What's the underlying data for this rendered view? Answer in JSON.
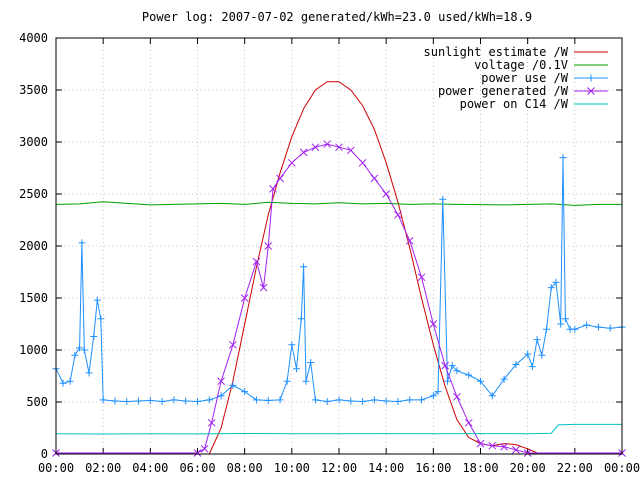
{
  "chart_data": {
    "type": "line",
    "title": "Power log: 2007-07-02 generated/kWh=23.0 used/kWh=18.9",
    "xlabel": "",
    "ylabel": "",
    "xlim": [
      0,
      24
    ],
    "ylim": [
      0,
      4000
    ],
    "grid": true,
    "legend_position": "top-right",
    "x_ticks": [
      "00:00",
      "02:00",
      "04:00",
      "06:00",
      "08:00",
      "10:00",
      "12:00",
      "14:00",
      "16:00",
      "18:00",
      "20:00",
      "22:00",
      "00:00"
    ],
    "y_ticks": [
      0,
      500,
      1000,
      1500,
      2000,
      2500,
      3000,
      3500,
      4000
    ],
    "series": [
      {
        "name": "sunlight estimate /W",
        "color": "#cc0000",
        "marker": "none",
        "points": [
          [
            6.5,
            0
          ],
          [
            7,
            250
          ],
          [
            7.5,
            700
          ],
          [
            8,
            1250
          ],
          [
            8.5,
            1800
          ],
          [
            9,
            2300
          ],
          [
            9.5,
            2700
          ],
          [
            10,
            3050
          ],
          [
            10.5,
            3320
          ],
          [
            11,
            3500
          ],
          [
            11.5,
            3580
          ],
          [
            12,
            3580
          ],
          [
            12.5,
            3500
          ],
          [
            13,
            3350
          ],
          [
            13.5,
            3120
          ],
          [
            14,
            2800
          ],
          [
            14.5,
            2420
          ],
          [
            15,
            1980
          ],
          [
            15.5,
            1500
          ],
          [
            16,
            1050
          ],
          [
            16.5,
            650
          ],
          [
            17,
            330
          ],
          [
            17.5,
            160
          ],
          [
            18,
            100
          ],
          [
            18.5,
            80
          ],
          [
            19,
            100
          ],
          [
            19.5,
            90
          ],
          [
            20,
            50
          ],
          [
            20.5,
            0
          ]
        ]
      },
      {
        "name": "voltage /0.1V",
        "color": "#00a000",
        "marker": "none",
        "points": [
          [
            0,
            2400
          ],
          [
            1,
            2405
          ],
          [
            2,
            2425
          ],
          [
            3,
            2410
          ],
          [
            4,
            2395
          ],
          [
            5,
            2400
          ],
          [
            6,
            2405
          ],
          [
            7,
            2410
          ],
          [
            8,
            2400
          ],
          [
            9,
            2420
          ],
          [
            10,
            2410
          ],
          [
            11,
            2405
          ],
          [
            12,
            2415
          ],
          [
            13,
            2405
          ],
          [
            14,
            2410
          ],
          [
            15,
            2400
          ],
          [
            16,
            2405
          ],
          [
            17,
            2400
          ],
          [
            18,
            2398
          ],
          [
            19,
            2395
          ],
          [
            20,
            2400
          ],
          [
            21,
            2405
          ],
          [
            22,
            2390
          ],
          [
            23,
            2400
          ],
          [
            24,
            2400
          ]
        ]
      },
      {
        "name": "power use /W",
        "color": "#1e90ff",
        "marker": "plus",
        "points": [
          [
            0,
            820
          ],
          [
            0.3,
            680
          ],
          [
            0.6,
            700
          ],
          [
            0.8,
            950
          ],
          [
            1,
            1020
          ],
          [
            1.1,
            2030
          ],
          [
            1.2,
            1000
          ],
          [
            1.4,
            780
          ],
          [
            1.6,
            1130
          ],
          [
            1.75,
            1480
          ],
          [
            1.9,
            1300
          ],
          [
            2,
            520
          ],
          [
            2.5,
            510
          ],
          [
            3,
            505
          ],
          [
            3.5,
            510
          ],
          [
            4,
            515
          ],
          [
            4.5,
            505
          ],
          [
            5,
            520
          ],
          [
            5.5,
            510
          ],
          [
            6,
            505
          ],
          [
            6.5,
            520
          ],
          [
            7,
            560
          ],
          [
            7.5,
            660
          ],
          [
            8,
            600
          ],
          [
            8.5,
            520
          ],
          [
            9,
            515
          ],
          [
            9.5,
            520
          ],
          [
            9.8,
            700
          ],
          [
            10,
            1050
          ],
          [
            10.2,
            820
          ],
          [
            10.4,
            1300
          ],
          [
            10.5,
            1800
          ],
          [
            10.6,
            700
          ],
          [
            10.8,
            880
          ],
          [
            11,
            520
          ],
          [
            11.5,
            505
          ],
          [
            12,
            520
          ],
          [
            12.5,
            510
          ],
          [
            13,
            505
          ],
          [
            13.5,
            520
          ],
          [
            14,
            510
          ],
          [
            14.5,
            505
          ],
          [
            15,
            520
          ],
          [
            15.5,
            520
          ],
          [
            16,
            560
          ],
          [
            16.2,
            600
          ],
          [
            16.4,
            2450
          ],
          [
            16.6,
            700
          ],
          [
            16.8,
            850
          ],
          [
            17,
            800
          ],
          [
            17.5,
            760
          ],
          [
            18,
            700
          ],
          [
            18.5,
            560
          ],
          [
            19,
            720
          ],
          [
            19.5,
            860
          ],
          [
            20,
            960
          ],
          [
            20.2,
            840
          ],
          [
            20.4,
            1100
          ],
          [
            20.6,
            950
          ],
          [
            20.8,
            1200
          ],
          [
            21,
            1600
          ],
          [
            21.2,
            1650
          ],
          [
            21.4,
            1250
          ],
          [
            21.5,
            2850
          ],
          [
            21.6,
            1300
          ],
          [
            21.8,
            1200
          ],
          [
            22,
            1200
          ],
          [
            22.5,
            1240
          ],
          [
            23,
            1220
          ],
          [
            23.5,
            1210
          ],
          [
            24,
            1220
          ]
        ]
      },
      {
        "name": "power generated /W",
        "color": "#a020f0",
        "marker": "cross",
        "points": [
          [
            0,
            10
          ],
          [
            6,
            10
          ],
          [
            6.3,
            50
          ],
          [
            6.6,
            300
          ],
          [
            7,
            700
          ],
          [
            7.5,
            1050
          ],
          [
            8,
            1500
          ],
          [
            8.5,
            1850
          ],
          [
            8.8,
            1600
          ],
          [
            9,
            2000
          ],
          [
            9.2,
            2550
          ],
          [
            9.5,
            2650
          ],
          [
            10,
            2800
          ],
          [
            10.5,
            2900
          ],
          [
            11,
            2950
          ],
          [
            11.5,
            2980
          ],
          [
            12,
            2950
          ],
          [
            12.5,
            2920
          ],
          [
            13,
            2800
          ],
          [
            13.5,
            2650
          ],
          [
            14,
            2500
          ],
          [
            14.5,
            2300
          ],
          [
            15,
            2050
          ],
          [
            15.5,
            1700
          ],
          [
            16,
            1250
          ],
          [
            16.5,
            850
          ],
          [
            17,
            550
          ],
          [
            17.5,
            300
          ],
          [
            18,
            100
          ],
          [
            18.5,
            80
          ],
          [
            19,
            70
          ],
          [
            19.5,
            40
          ],
          [
            20,
            10
          ],
          [
            24,
            10
          ]
        ]
      },
      {
        "name": "power on C14 /W",
        "color": "#00c0c0",
        "marker": "none",
        "points": [
          [
            0,
            195
          ],
          [
            2,
            192
          ],
          [
            4,
            195
          ],
          [
            6,
            193
          ],
          [
            8,
            197
          ],
          [
            10,
            195
          ],
          [
            12,
            195
          ],
          [
            14,
            196
          ],
          [
            16,
            195
          ],
          [
            18,
            196
          ],
          [
            20,
            195
          ],
          [
            21,
            200
          ],
          [
            21.3,
            280
          ],
          [
            22,
            285
          ],
          [
            24,
            285
          ]
        ]
      }
    ]
  }
}
